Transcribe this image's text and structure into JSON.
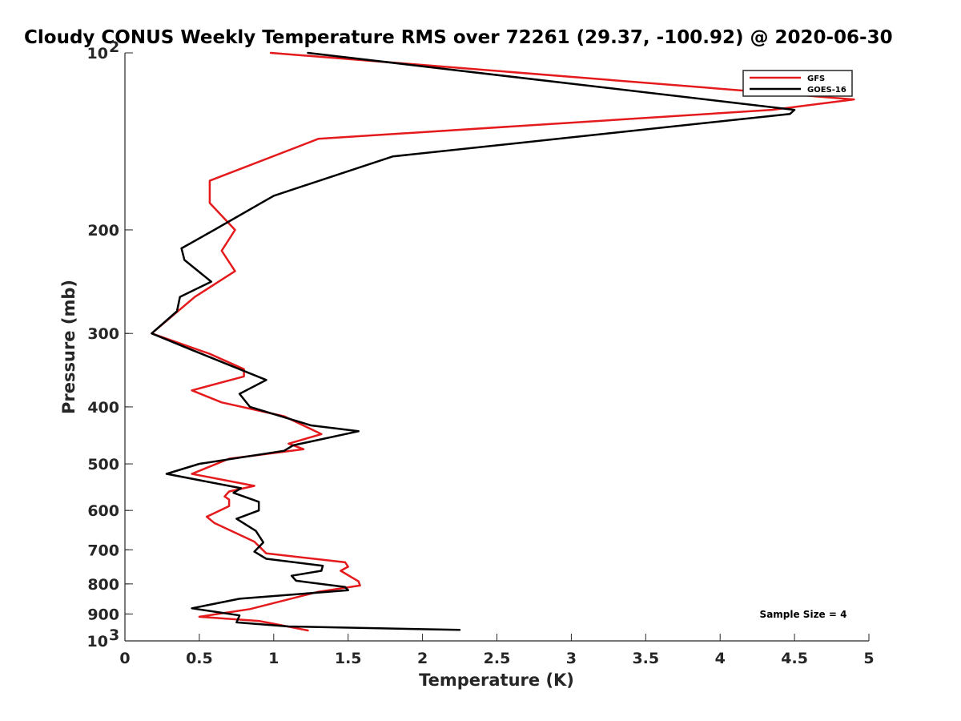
{
  "chart_data": {
    "type": "line",
    "title": "Cloudy CONUS Weekly Temperature RMS over 72261 (29.37, -100.92) @ 2020-06-30",
    "xlabel": "Temperature (K)",
    "ylabel": "Pressure (mb)",
    "xlim": [
      0,
      5
    ],
    "ylim": [
      100,
      1000
    ],
    "yscale": "log",
    "y_reversed": true,
    "x_ticks": [
      "0",
      "0.5",
      "1",
      "1.5",
      "2",
      "2.5",
      "3",
      "3.5",
      "4",
      "4.5",
      "5"
    ],
    "x_tick_values": [
      0,
      0.5,
      1,
      1.5,
      2,
      2.5,
      3,
      3.5,
      4,
      4.5,
      5
    ],
    "y_ticks": [
      {
        "value": 100,
        "base": "10",
        "exp": "2"
      },
      {
        "value": 200,
        "label": "200"
      },
      {
        "value": 300,
        "label": "300"
      },
      {
        "value": 400,
        "label": "400"
      },
      {
        "value": 500,
        "label": "500"
      },
      {
        "value": 600,
        "label": "600"
      },
      {
        "value": 700,
        "label": "700"
      },
      {
        "value": 800,
        "label": "800"
      },
      {
        "value": 900,
        "label": "900"
      },
      {
        "value": 1000,
        "base": "10",
        "exp": "3"
      }
    ],
    "legend_position": "top-right",
    "annotation": "Sample Size = 4",
    "series": [
      {
        "name": "GFS",
        "color": "#e41a1c",
        "points": [
          [
            0.98,
            100
          ],
          [
            4.9,
            120
          ],
          [
            4.35,
            125
          ],
          [
            1.3,
            140
          ],
          [
            0.57,
            165
          ],
          [
            0.57,
            180
          ],
          [
            0.74,
            200
          ],
          [
            0.65,
            217
          ],
          [
            0.74,
            235
          ],
          [
            0.47,
            260
          ],
          [
            0.18,
            300
          ],
          [
            0.57,
            325
          ],
          [
            0.8,
            345
          ],
          [
            0.8,
            355
          ],
          [
            0.45,
            375
          ],
          [
            0.65,
            393
          ],
          [
            1.07,
            415
          ],
          [
            1.32,
            445
          ],
          [
            1.1,
            462
          ],
          [
            1.2,
            472
          ],
          [
            0.7,
            490
          ],
          [
            0.45,
            520
          ],
          [
            0.87,
            545
          ],
          [
            0.7,
            557
          ],
          [
            0.67,
            568
          ],
          [
            0.7,
            575
          ],
          [
            0.7,
            590
          ],
          [
            0.55,
            615
          ],
          [
            0.6,
            630
          ],
          [
            0.87,
            678
          ],
          [
            0.95,
            710
          ],
          [
            1.48,
            735
          ],
          [
            1.5,
            748
          ],
          [
            1.45,
            760
          ],
          [
            1.57,
            792
          ],
          [
            1.58,
            805
          ],
          [
            1.3,
            825
          ],
          [
            0.84,
            883
          ],
          [
            0.5,
            910
          ],
          [
            0.9,
            925
          ],
          [
            1.0,
            935
          ],
          [
            1.23,
            960
          ]
        ]
      },
      {
        "name": "GOES-16",
        "color": "#000000",
        "points": [
          [
            1.23,
            100
          ],
          [
            4.5,
            125
          ],
          [
            4.47,
            127
          ],
          [
            1.8,
            150
          ],
          [
            1.0,
            175
          ],
          [
            0.6,
            200
          ],
          [
            0.38,
            215
          ],
          [
            0.4,
            225
          ],
          [
            0.58,
            245
          ],
          [
            0.37,
            260
          ],
          [
            0.35,
            275
          ],
          [
            0.18,
            300
          ],
          [
            0.45,
            320
          ],
          [
            0.95,
            360
          ],
          [
            0.77,
            380
          ],
          [
            0.84,
            400
          ],
          [
            1.25,
            430
          ],
          [
            1.57,
            440
          ],
          [
            1.13,
            465
          ],
          [
            1.07,
            475
          ],
          [
            0.5,
            500
          ],
          [
            0.28,
            520
          ],
          [
            0.78,
            550
          ],
          [
            0.73,
            560
          ],
          [
            0.9,
            580
          ],
          [
            0.9,
            600
          ],
          [
            0.75,
            620
          ],
          [
            0.88,
            650
          ],
          [
            0.93,
            680
          ],
          [
            0.87,
            705
          ],
          [
            0.95,
            725
          ],
          [
            1.33,
            745
          ],
          [
            1.32,
            760
          ],
          [
            1.12,
            775
          ],
          [
            1.15,
            790
          ],
          [
            1.48,
            810
          ],
          [
            1.5,
            820
          ],
          [
            0.77,
            848
          ],
          [
            0.45,
            880
          ],
          [
            0.77,
            905
          ],
          [
            0.75,
            930
          ],
          [
            1.1,
            945
          ],
          [
            2.25,
            958
          ]
        ]
      }
    ]
  }
}
